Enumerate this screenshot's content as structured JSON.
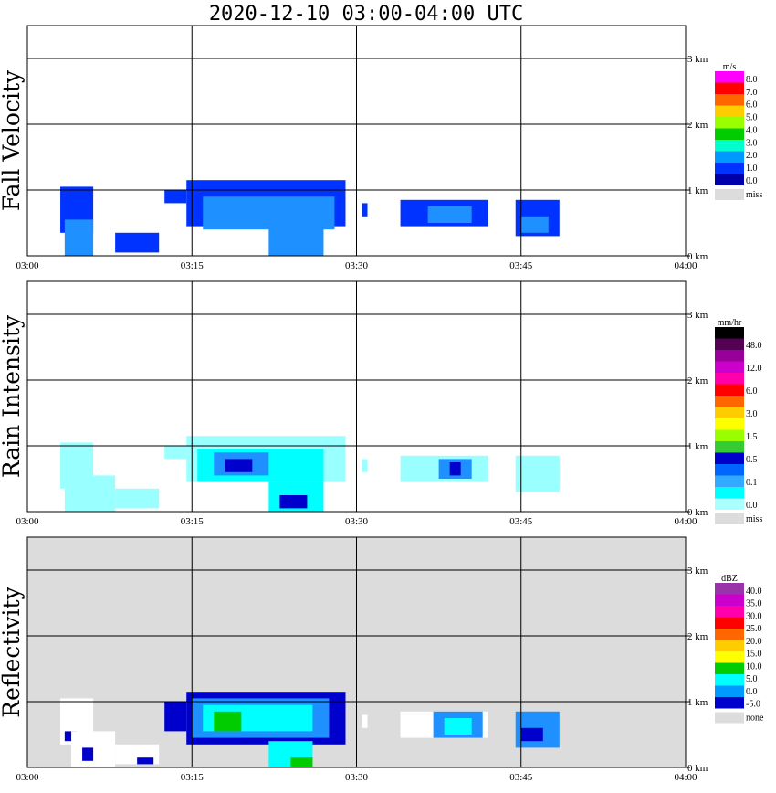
{
  "title": "2020-12-10   03:00-04:00 UTC",
  "chart_data": {
    "type": "heatmap",
    "x_ticks": [
      "03:00",
      "03:15",
      "03:30",
      "03:45",
      "04:00"
    ],
    "y_ticks": [
      "0 km",
      "1 km",
      "2 km",
      "3 km"
    ],
    "ylim": [
      0,
      3.5
    ],
    "panels": [
      {
        "id": "fall-velocity",
        "ylabel": "Fall Velocity",
        "background": "#ffffff",
        "colorbar": {
          "unit": "m/s",
          "labels": [
            "8.0",
            "7.0",
            "6.0",
            "5.0",
            "4.0",
            "3.0",
            "2.0",
            "1.0",
            "0.0"
          ],
          "colors": [
            "#ff00ff",
            "#ff0000",
            "#ff6600",
            "#ffcc00",
            "#99ff00",
            "#00cc00",
            "#00ffcc",
            "#0099ff",
            "#0033ff",
            "#0000aa"
          ],
          "missing_label": "miss",
          "missing_color": "#dcdcdc"
        },
        "cells": [
          {
            "t0": 3.0,
            "t1": 6.0,
            "h0": 0.35,
            "h1": 1.05,
            "c": "#0033ff"
          },
          {
            "t0": 3.4,
            "t1": 6.0,
            "h0": 0.0,
            "h1": 0.55,
            "c": "#1e90ff"
          },
          {
            "t0": 8.0,
            "t1": 12.0,
            "h0": 0.05,
            "h1": 0.35,
            "c": "#0033ff"
          },
          {
            "t0": 12.5,
            "t1": 14.5,
            "h0": 0.8,
            "h1": 1.0,
            "c": "#0033ff"
          },
          {
            "t0": 14.5,
            "t1": 29.0,
            "h0": 0.45,
            "h1": 1.15,
            "c": "#0033ff"
          },
          {
            "t0": 16.0,
            "t1": 28.0,
            "h0": 0.4,
            "h1": 0.9,
            "c": "#1e90ff"
          },
          {
            "t0": 22.0,
            "t1": 27.0,
            "h0": 0.0,
            "h1": 0.45,
            "c": "#1e90ff"
          },
          {
            "t0": 30.5,
            "t1": 31.0,
            "h0": 0.6,
            "h1": 0.8,
            "c": "#0033ff"
          },
          {
            "t0": 34.0,
            "t1": 42.0,
            "h0": 0.45,
            "h1": 0.85,
            "c": "#0033ff"
          },
          {
            "t0": 36.5,
            "t1": 40.5,
            "h0": 0.5,
            "h1": 0.75,
            "c": "#1e90ff"
          },
          {
            "t0": 44.5,
            "t1": 48.5,
            "h0": 0.3,
            "h1": 0.85,
            "c": "#0033ff"
          },
          {
            "t0": 45.0,
            "t1": 47.5,
            "h0": 0.35,
            "h1": 0.6,
            "c": "#1e90ff"
          }
        ]
      },
      {
        "id": "rain-intensity",
        "ylabel": "Rain Intensity",
        "background": "#ffffff",
        "colorbar": {
          "unit": "mm/hr",
          "labels": [
            "48.0",
            "12.0",
            "6.0",
            "3.0",
            "1.5",
            "0.5",
            "0.1",
            "0.0"
          ],
          "colors": [
            "#000000",
            "#550055",
            "#990099",
            "#cc00cc",
            "#ff00aa",
            "#ff0000",
            "#ff6600",
            "#ffcc00",
            "#ffff00",
            "#99ff00",
            "#33cc33",
            "#0000cc",
            "#0066ff",
            "#33aaff",
            "#00ffff",
            "#aaffff"
          ],
          "missing_label": "miss",
          "missing_color": "#dcdcdc"
        },
        "cells": [
          {
            "t0": 3.0,
            "t1": 6.0,
            "h0": 0.35,
            "h1": 1.05,
            "c": "#99ffff"
          },
          {
            "t0": 3.4,
            "t1": 8.0,
            "h0": 0.0,
            "h1": 0.55,
            "c": "#99ffff"
          },
          {
            "t0": 8.0,
            "t1": 12.0,
            "h0": 0.05,
            "h1": 0.35,
            "c": "#99ffff"
          },
          {
            "t0": 12.5,
            "t1": 14.5,
            "h0": 0.8,
            "h1": 1.0,
            "c": "#99ffff"
          },
          {
            "t0": 14.5,
            "t1": 29.0,
            "h0": 0.45,
            "h1": 1.15,
            "c": "#99ffff"
          },
          {
            "t0": 15.5,
            "t1": 27.0,
            "h0": 0.45,
            "h1": 0.95,
            "c": "#00ffff"
          },
          {
            "t0": 17.0,
            "t1": 22.0,
            "h0": 0.55,
            "h1": 0.9,
            "c": "#1e90ff"
          },
          {
            "t0": 18.0,
            "t1": 20.5,
            "h0": 0.6,
            "h1": 0.8,
            "c": "#0000cc"
          },
          {
            "t0": 22.0,
            "t1": 27.0,
            "h0": 0.0,
            "h1": 0.45,
            "c": "#00ffff"
          },
          {
            "t0": 23.0,
            "t1": 25.5,
            "h0": 0.05,
            "h1": 0.25,
            "c": "#0000cc"
          },
          {
            "t0": 30.5,
            "t1": 31.0,
            "h0": 0.6,
            "h1": 0.8,
            "c": "#99ffff"
          },
          {
            "t0": 34.0,
            "t1": 42.0,
            "h0": 0.45,
            "h1": 0.85,
            "c": "#99ffff"
          },
          {
            "t0": 37.5,
            "t1": 40.5,
            "h0": 0.5,
            "h1": 0.8,
            "c": "#1e90ff"
          },
          {
            "t0": 38.5,
            "t1": 39.5,
            "h0": 0.55,
            "h1": 0.75,
            "c": "#0000cc"
          },
          {
            "t0": 44.5,
            "t1": 48.5,
            "h0": 0.3,
            "h1": 0.85,
            "c": "#99ffff"
          }
        ]
      },
      {
        "id": "reflectivity",
        "ylabel": "Reflectivity",
        "background": "#dcdcdc",
        "colorbar": {
          "unit": "dBZ",
          "labels": [
            "40.0",
            "35.0",
            "30.0",
            "25.0",
            "20.0",
            "15.0",
            "10.0",
            "5.0",
            "0.0",
            "-5.0"
          ],
          "colors": [
            "#9933aa",
            "#cc00cc",
            "#ff00aa",
            "#ff0000",
            "#ff6600",
            "#ffcc00",
            "#ffff00",
            "#00cc00",
            "#00ffff",
            "#0099ff",
            "#0000cc"
          ],
          "missing_label": "none",
          "missing_color": "#dcdcdc"
        },
        "cells": [
          {
            "t0": 3.0,
            "t1": 6.0,
            "h0": 0.35,
            "h1": 1.05,
            "c": "#ffffff"
          },
          {
            "t0": 3.4,
            "t1": 4.5,
            "h0": 0.4,
            "h1": 0.55,
            "c": "#0000cc"
          },
          {
            "t0": 4.0,
            "t1": 8.0,
            "h0": 0.0,
            "h1": 0.55,
            "c": "#ffffff"
          },
          {
            "t0": 5.0,
            "t1": 6.0,
            "h0": 0.1,
            "h1": 0.3,
            "c": "#0000cc"
          },
          {
            "t0": 8.0,
            "t1": 12.0,
            "h0": 0.05,
            "h1": 0.35,
            "c": "#ffffff"
          },
          {
            "t0": 10.0,
            "t1": 11.5,
            "h0": 0.05,
            "h1": 0.15,
            "c": "#0000cc"
          },
          {
            "t0": 12.5,
            "t1": 14.5,
            "h0": 0.55,
            "h1": 1.0,
            "c": "#0000cc"
          },
          {
            "t0": 14.5,
            "t1": 29.0,
            "h0": 0.35,
            "h1": 1.15,
            "c": "#0000cc"
          },
          {
            "t0": 15.0,
            "t1": 27.5,
            "h0": 0.45,
            "h1": 1.05,
            "c": "#1e90ff"
          },
          {
            "t0": 16.0,
            "t1": 26.0,
            "h0": 0.55,
            "h1": 0.95,
            "c": "#00ffff"
          },
          {
            "t0": 17.0,
            "t1": 19.5,
            "h0": 0.55,
            "h1": 0.85,
            "c": "#00cc00"
          },
          {
            "t0": 22.0,
            "t1": 26.0,
            "h0": 0.0,
            "h1": 0.4,
            "c": "#00ffff"
          },
          {
            "t0": 24.0,
            "t1": 26.0,
            "h0": 0.0,
            "h1": 0.15,
            "c": "#00cc00"
          },
          {
            "t0": 30.5,
            "t1": 31.0,
            "h0": 0.6,
            "h1": 0.8,
            "c": "#ffffff"
          },
          {
            "t0": 34.0,
            "t1": 42.0,
            "h0": 0.45,
            "h1": 0.85,
            "c": "#ffffff"
          },
          {
            "t0": 37.0,
            "t1": 41.5,
            "h0": 0.45,
            "h1": 0.85,
            "c": "#1e90ff"
          },
          {
            "t0": 38.0,
            "t1": 40.5,
            "h0": 0.5,
            "h1": 0.75,
            "c": "#00ffff"
          },
          {
            "t0": 44.5,
            "t1": 48.5,
            "h0": 0.3,
            "h1": 0.85,
            "c": "#1e90ff"
          },
          {
            "t0": 45.0,
            "t1": 47.0,
            "h0": 0.4,
            "h1": 0.6,
            "c": "#0000cc"
          }
        ]
      }
    ]
  }
}
